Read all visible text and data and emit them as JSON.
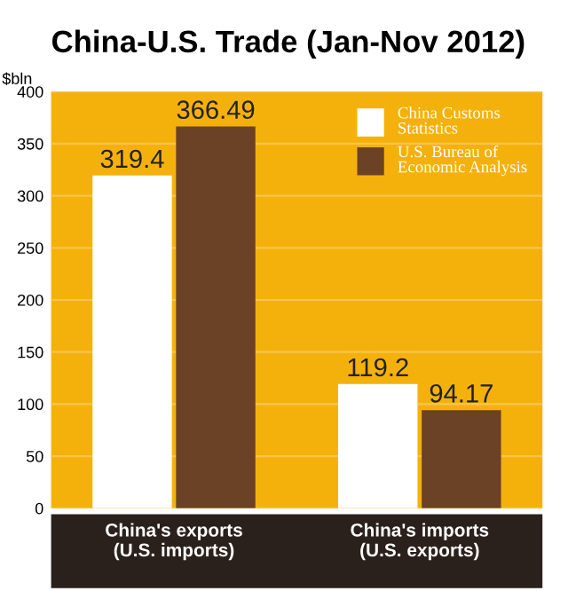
{
  "chart_data": {
    "type": "bar",
    "title": "China-U.S. Trade (Jan-Nov 2012)",
    "ylabel": "$bln",
    "categories": [
      "China's exports\n(U.S. imports)",
      "China's imports\n(U.S. exports)"
    ],
    "series": [
      {
        "name": "China Customs\nStatistics",
        "color": "#ffffff",
        "values": [
          319.4,
          119.2
        ]
      },
      {
        "name": "U.S. Bureau of\nEconomic Analysis",
        "color": "#6b4226",
        "values": [
          366.49,
          94.17
        ]
      }
    ],
    "ylim": [
      0,
      400
    ],
    "yticks": [
      0,
      50,
      100,
      150,
      200,
      250,
      300,
      350,
      400
    ],
    "grid": "y",
    "legend": "top right",
    "data_labels": true
  }
}
